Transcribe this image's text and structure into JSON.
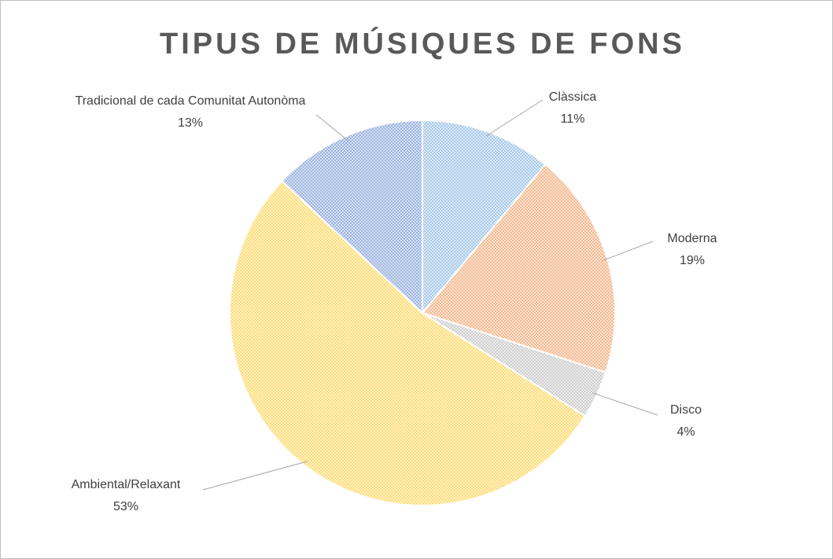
{
  "chart_data": {
    "type": "pie",
    "title": "TIPUS DE MÚSIQUES DE FONS",
    "categories": [
      "Clàssica",
      "Moderna",
      "Disco",
      "Ambiental/Relaxant",
      "Tradicional de cada Comunitat Autonòma"
    ],
    "values": [
      11,
      19,
      4,
      53,
      13
    ],
    "value_labels": [
      "11%",
      "19%",
      "4%",
      "53%",
      "13%"
    ],
    "colors": [
      "#9dc3e6",
      "#f4b183",
      "#c9c9c9",
      "#ffd966",
      "#8faadc"
    ]
  }
}
